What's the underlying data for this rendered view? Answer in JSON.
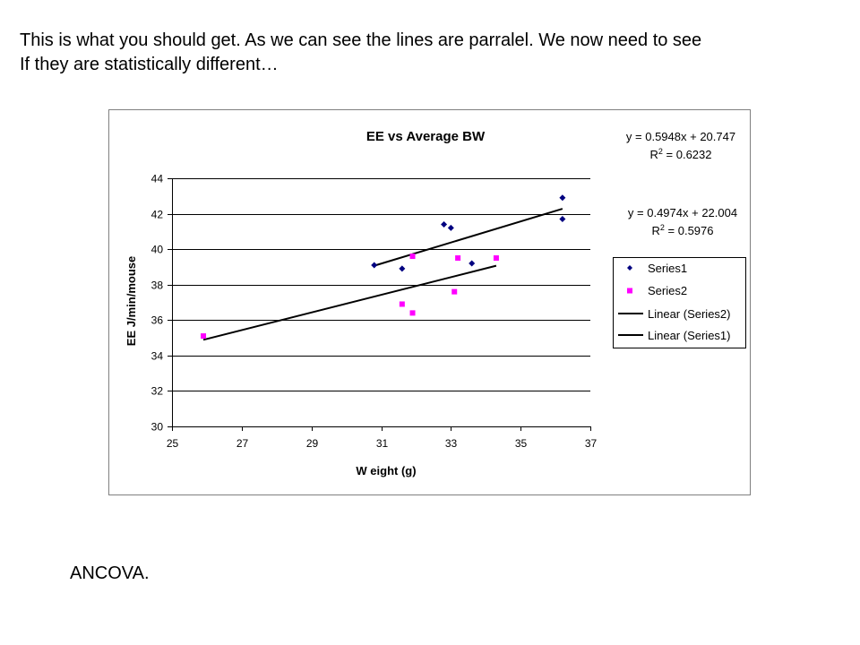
{
  "heading": {
    "line1": "This is what you should get. As we can see the lines are parralel. We now need to see",
    "line2": "If they are statistically different…"
  },
  "footer": {
    "text": "ANCOVA."
  },
  "chart_data": {
    "type": "scatter",
    "title": "EE  vs Average BW",
    "xlabel": "W eight (g)",
    "ylabel": "EE J/min/mouse",
    "xlim": [
      25,
      37
    ],
    "ylim": [
      30,
      44
    ],
    "xticks": [
      25,
      27,
      29,
      31,
      33,
      35,
      37
    ],
    "yticks": [
      30,
      32,
      34,
      36,
      38,
      40,
      42,
      44
    ],
    "grid": "horizontal",
    "legend_position": "right",
    "series": [
      {
        "name": "Series1",
        "marker": "diamond",
        "color": "#000080",
        "points": [
          {
            "x": 30.8,
            "y": 39.1
          },
          {
            "x": 31.6,
            "y": 38.9
          },
          {
            "x": 32.8,
            "y": 41.4
          },
          {
            "x": 33.0,
            "y": 41.2
          },
          {
            "x": 33.6,
            "y": 39.2
          },
          {
            "x": 36.2,
            "y": 42.9
          },
          {
            "x": 36.2,
            "y": 41.7
          }
        ]
      },
      {
        "name": "Series2",
        "marker": "square",
        "color": "#ff00ff",
        "points": [
          {
            "x": 25.9,
            "y": 35.1
          },
          {
            "x": 31.6,
            "y": 36.9
          },
          {
            "x": 31.9,
            "y": 39.6
          },
          {
            "x": 31.9,
            "y": 36.4
          },
          {
            "x": 33.1,
            "y": 37.6
          },
          {
            "x": 33.2,
            "y": 39.5
          },
          {
            "x": 34.3,
            "y": 39.5
          }
        ]
      }
    ],
    "trendlines": [
      {
        "name": "Linear (Series2)",
        "series": "Series2",
        "slope": 0.4974,
        "intercept": 22.004,
        "x_range": [
          25.9,
          34.3
        ],
        "color": "#000000"
      },
      {
        "name": "Linear (Series1)",
        "series": "Series1",
        "slope": 0.5948,
        "intercept": 20.747,
        "x_range": [
          30.8,
          36.2
        ],
        "color": "#000000"
      }
    ],
    "annotations": [
      {
        "equation": "y = 0.5948x + 20.747",
        "r2_label": "R",
        "r2_sup": "2",
        "r2_value": " = 0.6232"
      },
      {
        "equation": "y = 0.4974x + 22.004",
        "r2_label": "R",
        "r2_sup": "2",
        "r2_value": " = 0.5976"
      }
    ]
  }
}
